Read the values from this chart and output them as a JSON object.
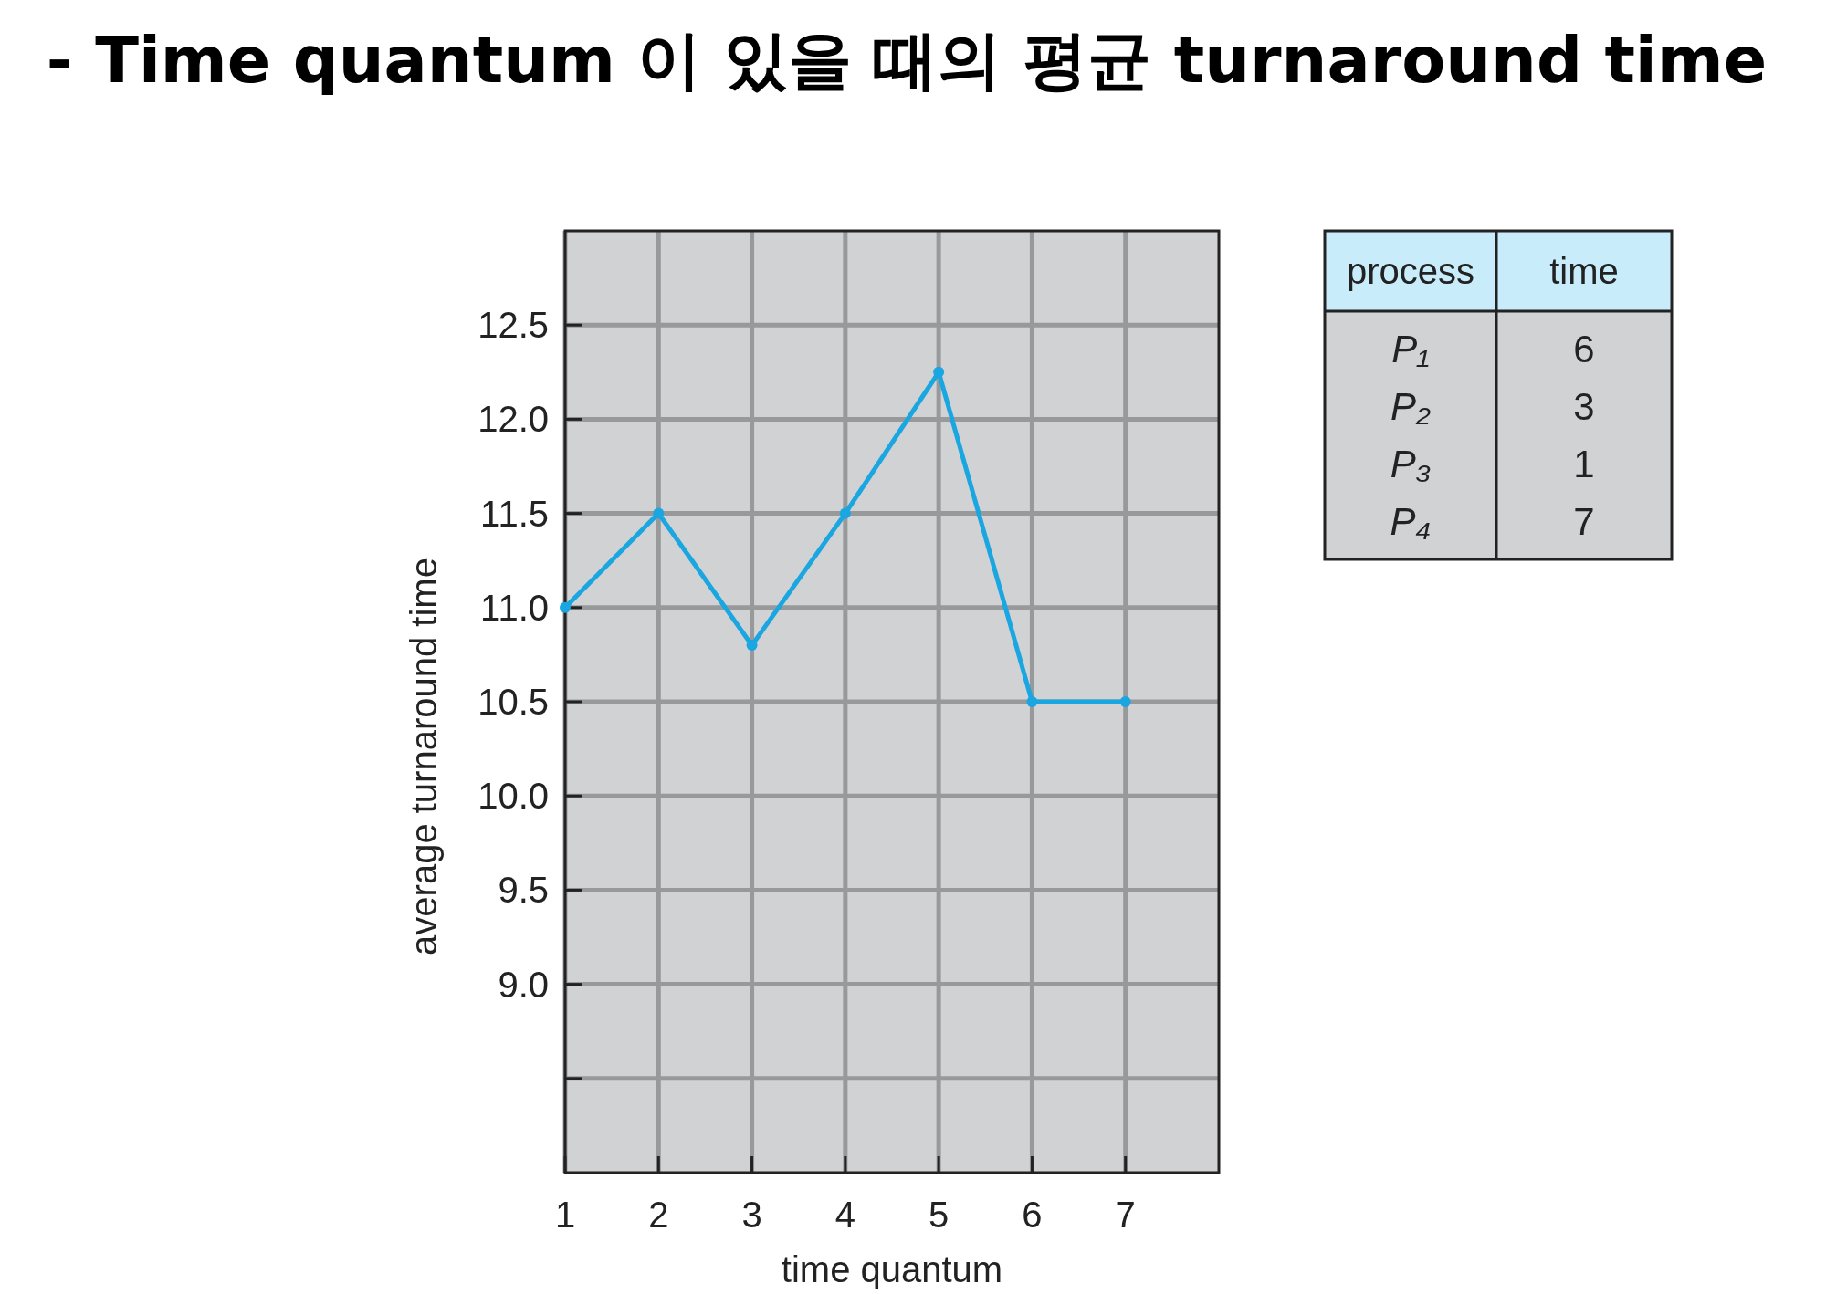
{
  "chart_data": [
    {
      "type": "line",
      "title": "- Time quantum 이 있을 때의 평균 turnaround time",
      "xlabel": "time quantum",
      "ylabel": "average turnaround time",
      "x": [
        1,
        2,
        3,
        4,
        5,
        6,
        7
      ],
      "series": [
        {
          "color": "#1aa6e0",
          "values": [
            11.0,
            11.5,
            10.8,
            11.5,
            12.25,
            10.5,
            10.5
          ]
        }
      ],
      "xlim": [
        1,
        8
      ],
      "xticks": [
        1,
        2,
        3,
        4,
        5,
        6,
        7
      ],
      "ylim": [
        8,
        13
      ],
      "yticks": [
        {
          "value": 8.5,
          "label": null
        },
        {
          "value": 9,
          "label": "9.0"
        },
        9.5,
        {
          "value": 10,
          "label": "10.0"
        },
        10.5,
        {
          "value": 11,
          "label": "11.0"
        },
        11.5,
        {
          "value": 12,
          "label": "12.0"
        },
        12.5
      ],
      "grid": true,
      "marker": "circle"
    },
    {
      "type": "other",
      "annotations": [
        "process",
        "time",
        "P₁",
        "6",
        "P₂",
        "3",
        "P₃",
        "1",
        "P₄",
        "7"
      ]
    }
  ]
}
